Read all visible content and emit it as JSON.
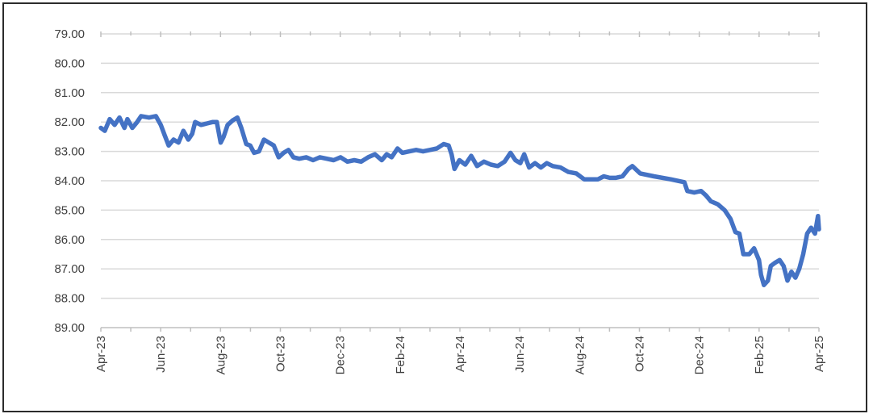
{
  "chart_data": {
    "type": "line",
    "title": "",
    "xlabel": "",
    "ylabel": "",
    "y_inverted": true,
    "ylim": [
      79,
      89
    ],
    "y_ticks": [
      "79.00",
      "80.00",
      "81.00",
      "82.00",
      "83.00",
      "84.00",
      "85.00",
      "86.00",
      "87.00",
      "88.00",
      "89.00"
    ],
    "x_ticks": [
      "Apr-23",
      "Jun-23",
      "Aug-23",
      "Oct-23",
      "Dec-23",
      "Feb-24",
      "Apr-24",
      "Jun-24",
      "Aug-24",
      "Oct-24",
      "Dec-24",
      "Feb-25",
      "Apr-25"
    ],
    "grid": true,
    "legend": "none",
    "series_color": "#4472C4",
    "series": [
      {
        "values": [
          [
            "2023-04-01",
            82.2
          ],
          [
            "2023-04-05",
            82.3
          ],
          [
            "2023-04-10",
            81.9
          ],
          [
            "2023-04-15",
            82.1
          ],
          [
            "2023-04-20",
            81.85
          ],
          [
            "2023-04-25",
            82.2
          ],
          [
            "2023-04-28",
            81.9
          ],
          [
            "2023-05-03",
            82.2
          ],
          [
            "2023-05-08",
            82.0
          ],
          [
            "2023-05-12",
            81.8
          ],
          [
            "2023-05-20",
            81.85
          ],
          [
            "2023-05-27",
            81.8
          ],
          [
            "2023-06-01",
            82.1
          ],
          [
            "2023-06-05",
            82.45
          ],
          [
            "2023-06-09",
            82.8
          ],
          [
            "2023-06-14",
            82.6
          ],
          [
            "2023-06-19",
            82.7
          ],
          [
            "2023-06-24",
            82.3
          ],
          [
            "2023-06-29",
            82.6
          ],
          [
            "2023-07-03",
            82.4
          ],
          [
            "2023-07-06",
            82.0
          ],
          [
            "2023-07-12",
            82.1
          ],
          [
            "2023-07-18",
            82.05
          ],
          [
            "2023-07-24",
            82.0
          ],
          [
            "2023-07-28",
            82.0
          ],
          [
            "2023-08-01",
            82.7
          ],
          [
            "2023-08-04",
            82.5
          ],
          [
            "2023-08-08",
            82.1
          ],
          [
            "2023-08-13",
            81.95
          ],
          [
            "2023-08-18",
            81.85
          ],
          [
            "2023-08-22",
            82.2
          ],
          [
            "2023-08-27",
            82.75
          ],
          [
            "2023-08-31",
            82.8
          ],
          [
            "2023-09-04",
            83.05
          ],
          [
            "2023-09-09",
            83.0
          ],
          [
            "2023-09-14",
            82.6
          ],
          [
            "2023-09-19",
            82.7
          ],
          [
            "2023-09-24",
            82.8
          ],
          [
            "2023-09-29",
            83.2
          ],
          [
            "2023-10-04",
            83.05
          ],
          [
            "2023-10-09",
            82.95
          ],
          [
            "2023-10-14",
            83.2
          ],
          [
            "2023-10-20",
            83.25
          ],
          [
            "2023-10-27",
            83.2
          ],
          [
            "2023-11-03",
            83.3
          ],
          [
            "2023-11-10",
            83.2
          ],
          [
            "2023-11-17",
            83.25
          ],
          [
            "2023-11-24",
            83.3
          ],
          [
            "2023-12-01",
            83.2
          ],
          [
            "2023-12-08",
            83.35
          ],
          [
            "2023-12-15",
            83.3
          ],
          [
            "2023-12-22",
            83.35
          ],
          [
            "2023-12-29",
            83.2
          ],
          [
            "2024-01-05",
            83.1
          ],
          [
            "2024-01-12",
            83.3
          ],
          [
            "2024-01-17",
            83.1
          ],
          [
            "2024-01-22",
            83.2
          ],
          [
            "2024-01-28",
            82.9
          ],
          [
            "2024-02-02",
            83.05
          ],
          [
            "2024-02-09",
            83.0
          ],
          [
            "2024-02-16",
            82.95
          ],
          [
            "2024-02-23",
            83.0
          ],
          [
            "2024-03-01",
            82.95
          ],
          [
            "2024-03-08",
            82.9
          ],
          [
            "2024-03-15",
            82.75
          ],
          [
            "2024-03-20",
            82.8
          ],
          [
            "2024-03-23",
            83.1
          ],
          [
            "2024-03-26",
            83.6
          ],
          [
            "2024-03-31",
            83.3
          ],
          [
            "2024-04-06",
            83.45
          ],
          [
            "2024-04-12",
            83.15
          ],
          [
            "2024-04-18",
            83.5
          ],
          [
            "2024-04-25",
            83.35
          ],
          [
            "2024-05-02",
            83.45
          ],
          [
            "2024-05-09",
            83.5
          ],
          [
            "2024-05-16",
            83.35
          ],
          [
            "2024-05-22",
            83.05
          ],
          [
            "2024-05-27",
            83.3
          ],
          [
            "2024-06-01",
            83.4
          ],
          [
            "2024-06-05",
            83.1
          ],
          [
            "2024-06-10",
            83.55
          ],
          [
            "2024-06-16",
            83.4
          ],
          [
            "2024-06-22",
            83.55
          ],
          [
            "2024-06-28",
            83.4
          ],
          [
            "2024-07-04",
            83.5
          ],
          [
            "2024-07-12",
            83.55
          ],
          [
            "2024-07-20",
            83.7
          ],
          [
            "2024-07-28",
            83.75
          ],
          [
            "2024-08-05",
            83.95
          ],
          [
            "2024-08-12",
            83.95
          ],
          [
            "2024-08-19",
            83.95
          ],
          [
            "2024-08-25",
            83.85
          ],
          [
            "2024-08-31",
            83.9
          ],
          [
            "2024-09-06",
            83.9
          ],
          [
            "2024-09-13",
            83.85
          ],
          [
            "2024-09-19",
            83.6
          ],
          [
            "2024-09-23",
            83.5
          ],
          [
            "2024-10-01",
            83.75
          ],
          [
            "2024-10-15",
            83.85
          ],
          [
            "2024-11-01",
            83.95
          ],
          [
            "2024-11-15",
            84.05
          ],
          [
            "2024-11-18",
            84.35
          ],
          [
            "2024-11-25",
            84.4
          ],
          [
            "2024-12-02",
            84.35
          ],
          [
            "2024-12-07",
            84.5
          ],
          [
            "2024-12-12",
            84.7
          ],
          [
            "2024-12-19",
            84.8
          ],
          [
            "2024-12-26",
            85.0
          ],
          [
            "2025-01-01",
            85.3
          ],
          [
            "2025-01-06",
            85.75
          ],
          [
            "2025-01-10",
            85.8
          ],
          [
            "2025-01-14",
            86.5
          ],
          [
            "2025-01-20",
            86.5
          ],
          [
            "2025-01-25",
            86.3
          ],
          [
            "2025-01-30",
            86.7
          ],
          [
            "2025-02-01",
            87.2
          ],
          [
            "2025-02-04",
            87.55
          ],
          [
            "2025-02-08",
            87.4
          ],
          [
            "2025-02-11",
            86.9
          ],
          [
            "2025-02-15",
            86.8
          ],
          [
            "2025-02-20",
            86.7
          ],
          [
            "2025-02-24",
            86.9
          ],
          [
            "2025-02-28",
            87.4
          ],
          [
            "2025-03-04",
            87.1
          ],
          [
            "2025-03-08",
            87.3
          ],
          [
            "2025-03-12",
            87.0
          ],
          [
            "2025-03-16",
            86.5
          ],
          [
            "2025-03-20",
            85.8
          ],
          [
            "2025-03-24",
            85.6
          ],
          [
            "2025-03-28",
            85.8
          ],
          [
            "2025-03-31",
            85.2
          ],
          [
            "2025-04-01",
            85.65
          ]
        ]
      }
    ]
  }
}
